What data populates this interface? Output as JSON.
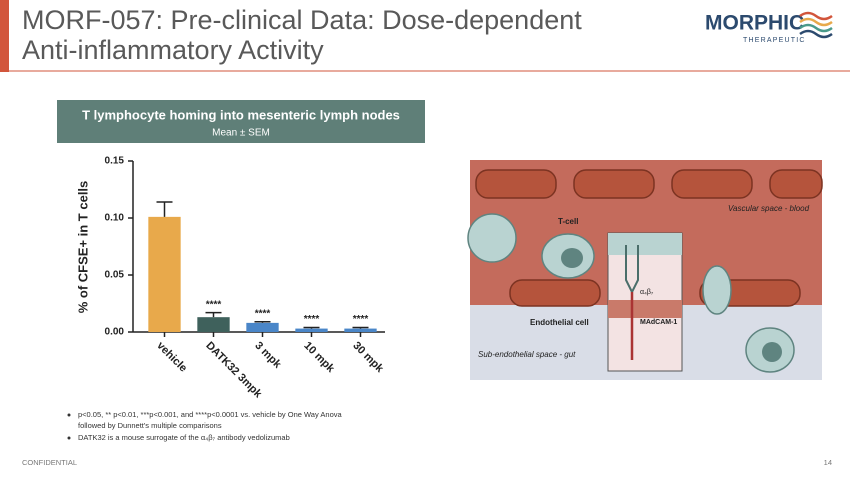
{
  "slide": {
    "title_lines": [
      "MORF-057: Pre-clinical Data: Dose-dependent",
      "Anti-inflammatory Activity"
    ],
    "logo": {
      "name": "MORPHIC",
      "tagline": "THERAPEUTIC"
    },
    "footnotes": [
      [
        "p<0.05, ** p<0.01, ***p<0.001, and ****p<0.0001  vs. vehicle by One Way Anova",
        "followed by Dunnett's multiple comparisons"
      ],
      [
        "DATK32  is a mouse surrogate of the α₄β₇ antibody vedolizumab"
      ]
    ],
    "footer": {
      "left": "CONFIDENTIAL",
      "page": "14"
    },
    "diagram": {
      "t_cell": "T-cell",
      "vascular": "Vascular space - blood",
      "endothelial": "Endothelial cell",
      "sub_endothelial": "Sub-endothelial space - gut",
      "integrin": "α₄β₇",
      "madcam": "MAdCAM-1"
    }
  },
  "chart_data": {
    "type": "bar",
    "title": "T lymphocyte homing into mesenteric lymph nodes",
    "subtitle": "Mean ± SEM",
    "y_label": "% of CFSE+ in T cells",
    "categories": [
      "vehicle",
      "DATK32 3mpk",
      "3 mpk",
      "10 mpk",
      "30 mpk"
    ],
    "values": [
      0.101,
      0.013,
      0.008,
      0.003,
      0.003
    ],
    "errors": [
      0.013,
      0.004,
      0.001,
      0.001,
      0.001
    ],
    "annotations": [
      null,
      "****",
      "****",
      "****",
      "****"
    ],
    "colors": [
      "#e8a94b",
      "#3f615c",
      "#4a86c8",
      "#4a86c8",
      "#4a86c8"
    ],
    "ylim": [
      0,
      0.15
    ],
    "yticks": [
      {
        "value": 0,
        "label": "0.00"
      },
      {
        "value": 0.05,
        "label": "0.05"
      },
      {
        "value": 0.1,
        "label": "0.10"
      },
      {
        "value": 0.15,
        "label": "0.15"
      }
    ]
  }
}
